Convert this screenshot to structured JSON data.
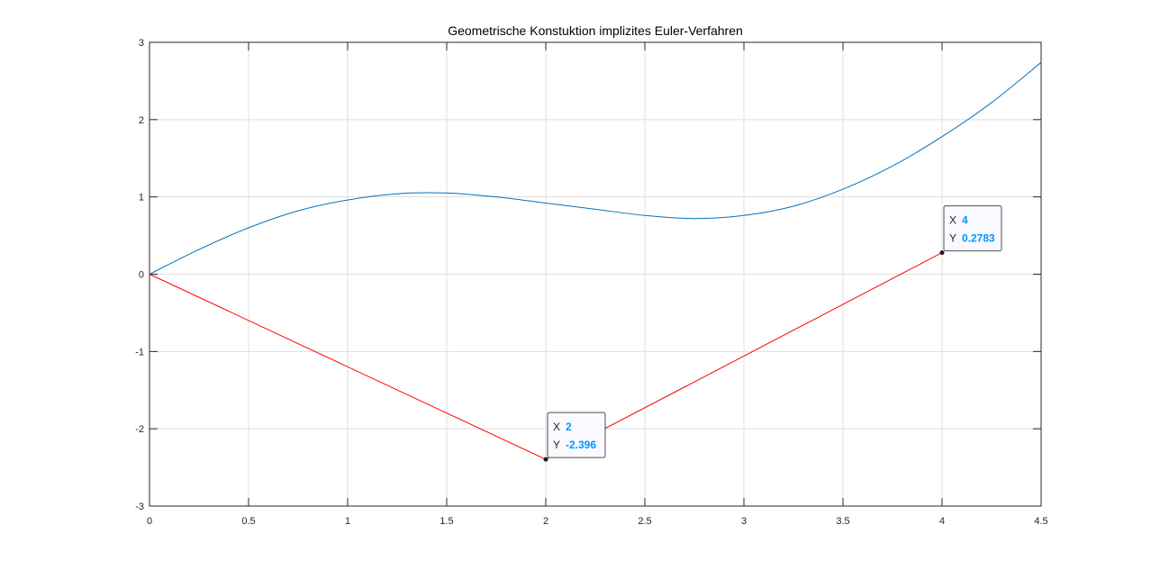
{
  "chart_data": {
    "type": "line",
    "title": "Geometrische Konstuktion implizites Euler-Verfahren",
    "xlabel": "",
    "ylabel": "",
    "xlim": [
      0,
      4.5
    ],
    "ylim": [
      -3,
      3
    ],
    "xticks": [
      0,
      0.5,
      1,
      1.5,
      2,
      2.5,
      3,
      3.5,
      4,
      4.5
    ],
    "xtick_labels": [
      "0",
      "0.5",
      "1",
      "1.5",
      "2",
      "2.5",
      "3",
      "3.5",
      "4",
      "4.5"
    ],
    "yticks": [
      -3,
      -2,
      -1,
      0,
      1,
      2,
      3
    ],
    "ytick_labels": [
      "-3",
      "-2",
      "-1",
      "0",
      "1",
      "2",
      "3"
    ],
    "grid": true,
    "series": [
      {
        "color": "#0072bd",
        "x": [
          0,
          0.25,
          0.5,
          0.75,
          1.0,
          1.25,
          1.5,
          1.75,
          2.0,
          2.25,
          2.5,
          2.75,
          3.0,
          3.25,
          3.5,
          3.75,
          4.0,
          4.25,
          4.5
        ],
        "y": [
          0,
          0.32,
          0.6,
          0.82,
          0.96,
          1.04,
          1.05,
          1.0,
          0.92,
          0.84,
          0.76,
          0.72,
          0.76,
          0.88,
          1.1,
          1.4,
          1.78,
          2.22,
          2.74
        ]
      },
      {
        "color": "#ff0000",
        "x": [
          0,
          2,
          4
        ],
        "y": [
          0,
          -2.396,
          0.2783
        ]
      }
    ],
    "datatips": [
      {
        "x": 2,
        "y": -2.396,
        "x_label": "X",
        "y_label": "Y",
        "x_text": "2",
        "y_text": "-2.396",
        "position": "upper-right"
      },
      {
        "x": 4,
        "y": 0.2783,
        "x_label": "X",
        "y_label": "Y",
        "x_text": "4",
        "y_text": "0.2783",
        "position": "upper-right"
      }
    ],
    "colors": {
      "axis": "#262626",
      "grid": "#dfdfdf",
      "datatip_value": "#0096ff",
      "datatip_border": "#4d4d4d"
    }
  }
}
